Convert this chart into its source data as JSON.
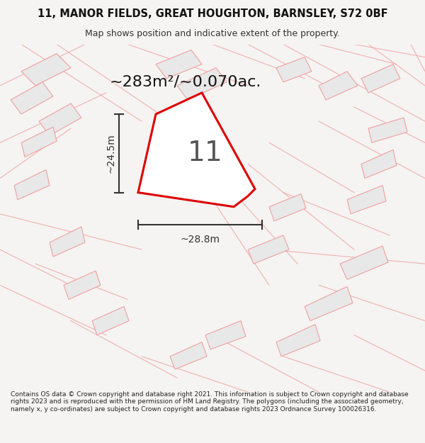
{
  "title_line1": "11, MANOR FIELDS, GREAT HOUGHTON, BARNSLEY, S72 0BF",
  "title_line2": "Map shows position and indicative extent of the property.",
  "area_text": "~283m²/~0.070ac.",
  "dim_height": "~24.5m",
  "dim_width": "~28.8m",
  "label": "11",
  "bg_color": "#f5f4f2",
  "map_bg": "#f7f6f4",
  "footer_text": "Contains OS data © Crown copyright and database right 2021. This information is subject to Crown copyright and database rights 2023 and is reproduced with the permission of HM Land Registry. The polygons (including the associated geometry, namely x, y co-ordinates) are subject to Crown copyright and database rights 2023 Ordnance Survey 100026316.",
  "highlight_color": "#dd0000",
  "plot_fill": "#ffffff",
  "bg_poly_fill": "#e8e8e8",
  "bg_poly_edge": "#f0a0a0",
  "road_color": "#f0a0a0",
  "dim_color": "#333333"
}
